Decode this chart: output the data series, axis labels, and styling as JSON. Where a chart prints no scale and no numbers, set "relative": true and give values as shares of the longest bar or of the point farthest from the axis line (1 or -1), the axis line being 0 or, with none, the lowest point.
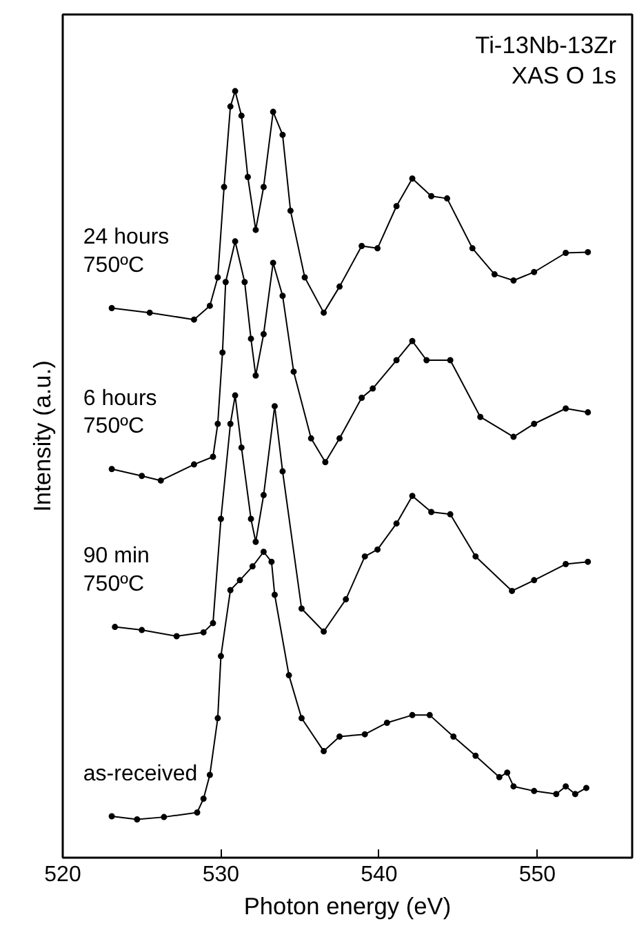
{
  "chart_data": {
    "type": "line",
    "relative": true,
    "xlabel": "Photon energy (eV)",
    "ylabel": "Intensity (a.u.)",
    "xlim": [
      520,
      556
    ],
    "xticks": [
      520,
      530,
      540,
      550
    ],
    "marker": "circle",
    "line_style": "solid",
    "annotations": [
      "Ti-13Nb-13Zr",
      "XAS O 1s"
    ],
    "series": [
      {
        "name": "24 hours\n750ºC",
        "color": "#000000",
        "x": [
          523.1,
          525.5,
          528.3,
          529.3,
          529.8,
          530.2,
          530.6,
          530.9,
          531.3,
          531.7,
          532.2,
          532.7,
          533.3,
          533.9,
          534.4,
          535.3,
          536.5,
          537.5,
          538.9,
          539.9,
          541.1,
          542.1,
          543.3,
          544.3,
          545.9,
          547.3,
          548.5,
          549.8,
          551.8,
          553.2
        ],
        "values": [
          0.717,
          0.711,
          0.702,
          0.72,
          0.757,
          0.875,
          0.98,
          1.0,
          0.968,
          0.888,
          0.819,
          0.875,
          0.973,
          0.943,
          0.844,
          0.757,
          0.711,
          0.745,
          0.798,
          0.795,
          0.85,
          0.886,
          0.863,
          0.86,
          0.795,
          0.761,
          0.753,
          0.764,
          0.789,
          0.79
        ]
      },
      {
        "name": "6 hours\n750ºC",
        "color": "#000000",
        "x": [
          523.1,
          525.0,
          526.2,
          528.3,
          529.5,
          529.8,
          530.1,
          530.3,
          530.9,
          531.5,
          531.9,
          532.2,
          532.7,
          533.3,
          533.9,
          534.6,
          535.7,
          536.6,
          537.5,
          538.9,
          539.6,
          541.1,
          542.1,
          543.0,
          544.5,
          546.4,
          548.5,
          549.8,
          551.8,
          553.2
        ],
        "values": [
          0.507,
          0.498,
          0.492,
          0.513,
          0.523,
          0.566,
          0.659,
          0.751,
          0.804,
          0.751,
          0.677,
          0.629,
          0.683,
          0.776,
          0.733,
          0.634,
          0.547,
          0.516,
          0.547,
          0.6,
          0.612,
          0.649,
          0.674,
          0.649,
          0.649,
          0.575,
          0.549,
          0.566,
          0.586,
          0.581
        ]
      },
      {
        "name": "90 min\n750ºC",
        "color": "#000000",
        "x": [
          523.3,
          525.0,
          527.2,
          528.9,
          529.5,
          530.0,
          530.6,
          530.9,
          531.3,
          531.9,
          532.2,
          532.7,
          533.4,
          533.9,
          535.1,
          536.5,
          537.9,
          539.1,
          539.9,
          541.1,
          542.1,
          543.3,
          544.5,
          546.1,
          548.4,
          549.8,
          551.8,
          553.2
        ],
        "values": [
          0.301,
          0.297,
          0.289,
          0.294,
          0.306,
          0.442,
          0.566,
          0.603,
          0.535,
          0.442,
          0.412,
          0.473,
          0.589,
          0.504,
          0.325,
          0.295,
          0.337,
          0.393,
          0.402,
          0.436,
          0.472,
          0.451,
          0.448,
          0.393,
          0.348,
          0.362,
          0.383,
          0.386
        ]
      },
      {
        "name": "as-received",
        "color": "#000000",
        "x": [
          523.1,
          524.7,
          526.4,
          528.5,
          528.9,
          529.3,
          529.8,
          530.0,
          530.6,
          531.2,
          532.0,
          532.7,
          533.2,
          533.4,
          534.3,
          535.1,
          536.5,
          537.5,
          539.1,
          540.5,
          542.1,
          543.2,
          544.7,
          546.1,
          547.6,
          548.1,
          548.5,
          549.8,
          551.2,
          551.8,
          552.4,
          553.1
        ],
        "values": [
          0.054,
          0.05,
          0.053,
          0.059,
          0.077,
          0.108,
          0.182,
          0.263,
          0.349,
          0.362,
          0.38,
          0.399,
          0.386,
          0.343,
          0.238,
          0.182,
          0.139,
          0.158,
          0.161,
          0.176,
          0.186,
          0.186,
          0.158,
          0.133,
          0.105,
          0.111,
          0.093,
          0.087,
          0.083,
          0.093,
          0.083,
          0.091
        ]
      }
    ]
  }
}
